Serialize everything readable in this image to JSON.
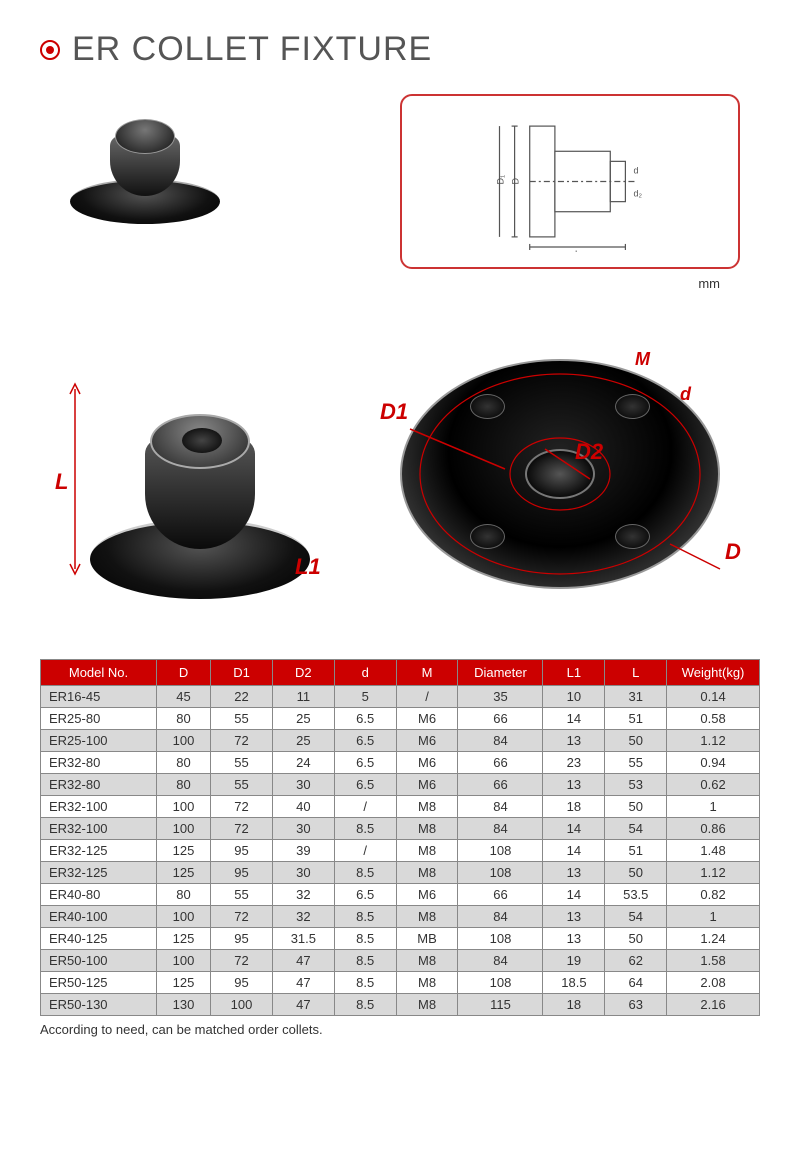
{
  "title": "ER COLLET FIXTURE",
  "diagram": {
    "unit_label": "mm"
  },
  "dimension_labels": {
    "L": "L",
    "L1": "L1",
    "D1": "D1",
    "D2": "D2",
    "D": "D",
    "M": "M",
    "d": "d"
  },
  "table": {
    "columns": [
      "Model No.",
      "D",
      "D1",
      "D2",
      "d",
      "M",
      "Diameter",
      "L1",
      "L",
      "Weight(kg)"
    ],
    "col_widths_pct": [
      15,
      7,
      8,
      8,
      8,
      8,
      11,
      8,
      8,
      12
    ],
    "header_bg": "#cc0000",
    "header_fg": "#ffffff",
    "alt_row_bg": "#d9d9d9",
    "rows": [
      [
        "ER16-45",
        "45",
        "22",
        "11",
        "5",
        "/",
        "35",
        "10",
        "31",
        "0.14"
      ],
      [
        "ER25-80",
        "80",
        "55",
        "25",
        "6.5",
        "M6",
        "66",
        "14",
        "51",
        "0.58"
      ],
      [
        "ER25-100",
        "100",
        "72",
        "25",
        "6.5",
        "M6",
        "84",
        "13",
        "50",
        "1.12"
      ],
      [
        "ER32-80",
        "80",
        "55",
        "24",
        "6.5",
        "M6",
        "66",
        "23",
        "55",
        "0.94"
      ],
      [
        "ER32-80",
        "80",
        "55",
        "30",
        "6.5",
        "M6",
        "66",
        "13",
        "53",
        "0.62"
      ],
      [
        "ER32-100",
        "100",
        "72",
        "40",
        "/",
        "M8",
        "84",
        "18",
        "50",
        "1"
      ],
      [
        "ER32-100",
        "100",
        "72",
        "30",
        "8.5",
        "M8",
        "84",
        "14",
        "54",
        "0.86"
      ],
      [
        "ER32-125",
        "125",
        "95",
        "39",
        "/",
        "M8",
        "108",
        "14",
        "51",
        "1.48"
      ],
      [
        "ER32-125",
        "125",
        "95",
        "30",
        "8.5",
        "M8",
        "108",
        "13",
        "50",
        "1.12"
      ],
      [
        "ER40-80",
        "80",
        "55",
        "32",
        "6.5",
        "M6",
        "66",
        "14",
        "53.5",
        "0.82"
      ],
      [
        "ER40-100",
        "100",
        "72",
        "32",
        "8.5",
        "M8",
        "84",
        "13",
        "54",
        "1"
      ],
      [
        "ER40-125",
        "125",
        "95",
        "31.5",
        "8.5",
        "MB",
        "108",
        "13",
        "50",
        "1.24"
      ],
      [
        "ER50-100",
        "100",
        "72",
        "47",
        "8.5",
        "M8",
        "84",
        "19",
        "62",
        "1.58"
      ],
      [
        "ER50-125",
        "125",
        "95",
        "47",
        "8.5",
        "M8",
        "108",
        "18.5",
        "64",
        "2.08"
      ],
      [
        "ER50-130",
        "130",
        "100",
        "47",
        "8.5",
        "M8",
        "115",
        "18",
        "63",
        "2.16"
      ]
    ]
  },
  "footnote": "According to need, can be matched order collets.",
  "colors": {
    "accent": "#cc0000",
    "title_text": "#555555",
    "border": "#888888"
  }
}
